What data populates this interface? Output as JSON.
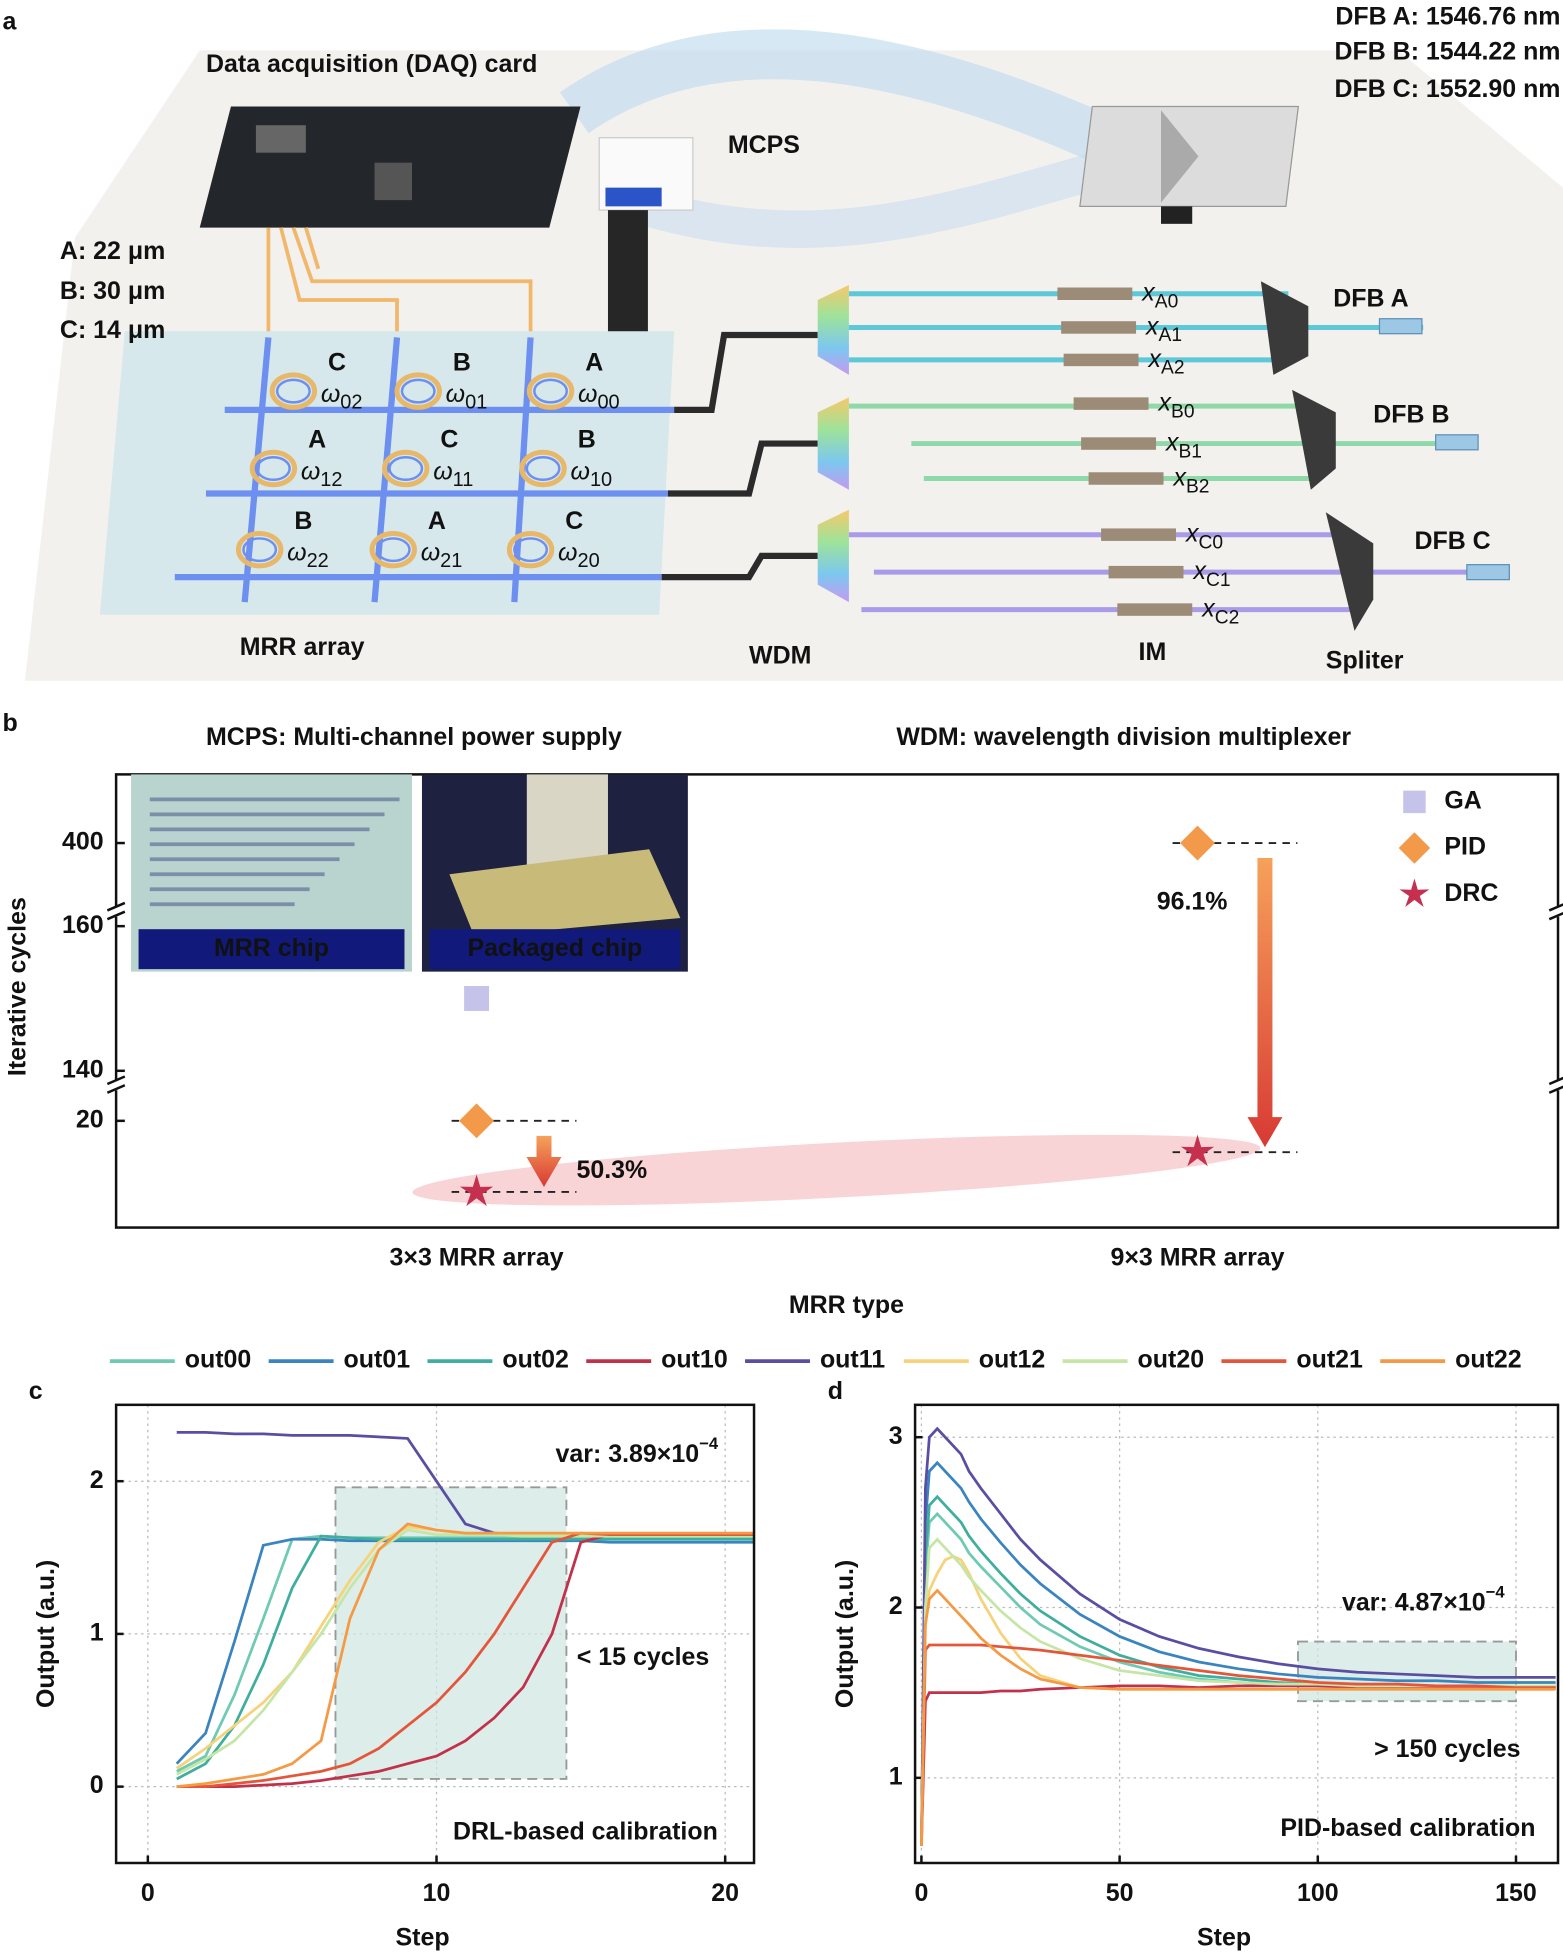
{
  "panel_a": {
    "label": "a",
    "daq": "Data acquisition (DAQ) card",
    "mcps": "MCPS",
    "dfb_wavelengths": [
      "DFB A: 1546.76 nm",
      "DFB B: 1544.22 nm",
      "DFB C: 1552.90 nm"
    ],
    "radii": [
      "A: 22 μm",
      "B: 30 μm",
      "C: 14 μm"
    ],
    "rings": [
      {
        "letter": "C",
        "symbol": "ω",
        "sub": "02"
      },
      {
        "letter": "B",
        "symbol": "ω",
        "sub": "01"
      },
      {
        "letter": "A",
        "symbol": "ω",
        "sub": "00"
      },
      {
        "letter": "A",
        "symbol": "ω",
        "sub": "12"
      },
      {
        "letter": "C",
        "symbol": "ω",
        "sub": "11"
      },
      {
        "letter": "B",
        "symbol": "ω",
        "sub": "10"
      },
      {
        "letter": "B",
        "symbol": "ω",
        "sub": "22"
      },
      {
        "letter": "A",
        "symbol": "ω",
        "sub": "21"
      },
      {
        "letter": "C",
        "symbol": "ω",
        "sub": "20"
      }
    ],
    "modulators": [
      {
        "symbol": "x",
        "sub": "A0"
      },
      {
        "symbol": "x",
        "sub": "A1"
      },
      {
        "symbol": "x",
        "sub": "A2"
      },
      {
        "symbol": "x",
        "sub": "B0"
      },
      {
        "symbol": "x",
        "sub": "B1"
      },
      {
        "symbol": "x",
        "sub": "B2"
      },
      {
        "symbol": "x",
        "sub": "C0"
      },
      {
        "symbol": "x",
        "sub": "C1"
      },
      {
        "symbol": "x",
        "sub": "C2"
      }
    ],
    "lasers": [
      "DFB A",
      "DFB B",
      "DFB C"
    ],
    "captions": [
      "MRR array",
      "WDM",
      "IM",
      "Spliter"
    ],
    "glossary": [
      "MCPS: Multi-channel power supply",
      "WDM: wavelength division multiplexer"
    ]
  },
  "chart_data": [
    {
      "type": "scatter",
      "label": "b",
      "x_label": "MRR type",
      "y_label": "Iterative cycles",
      "categories": [
        "3×3 MRR array",
        "9×3 MRR array"
      ],
      "series": [
        {
          "name": "GA",
          "color": "#c6c3ea",
          "marker": "square",
          "values": [
            150,
            null
          ]
        },
        {
          "name": "PID",
          "color": "#f39a4a",
          "marker": "diamond",
          "values": [
            20,
            400
          ]
        },
        {
          "name": "DRC",
          "color": "#c4304e",
          "marker": "star",
          "values": [
            10,
            15.6
          ]
        }
      ],
      "ylim": [
        5,
        415
      ],
      "y_segments": [
        [
          5,
          25
        ],
        [
          138,
          162
        ],
        [
          385,
          415
        ]
      ],
      "yticks": [
        20,
        140,
        160,
        400
      ],
      "annotations": [
        "50.3%",
        "96.1%"
      ],
      "insets": [
        "MRR chip",
        "Packaged chip"
      ],
      "legend": "upper right"
    },
    {
      "type": "line",
      "label": "c",
      "x_label": "Step",
      "y_label": "Output (a.u.)",
      "x": [
        1,
        2,
        3,
        4,
        5,
        6,
        7,
        8,
        9,
        10,
        11,
        12,
        13,
        14,
        15,
        16,
        17,
        18,
        19,
        20,
        21
      ],
      "xlim": [
        -1.1,
        21
      ],
      "ylim": [
        -0.5,
        2.5
      ],
      "xticks": [
        0,
        10,
        20
      ],
      "yticks": [
        0,
        1,
        2
      ],
      "grid": true,
      "series": [
        {
          "name": "out00",
          "color": "#6fcab3",
          "values": [
            0.1,
            0.2,
            0.6,
            1.1,
            1.62,
            1.64,
            1.63,
            1.63,
            1.63,
            1.63,
            1.63,
            1.63,
            1.63,
            1.63,
            1.63,
            1.63,
            1.63,
            1.63,
            1.63,
            1.63,
            1.63
          ]
        },
        {
          "name": "out01",
          "color": "#3a84bf",
          "values": [
            0.15,
            0.35,
            0.95,
            1.58,
            1.62,
            1.62,
            1.61,
            1.61,
            1.61,
            1.61,
            1.61,
            1.61,
            1.61,
            1.61,
            1.61,
            1.6,
            1.6,
            1.6,
            1.6,
            1.6,
            1.6
          ]
        },
        {
          "name": "out02",
          "color": "#3fae9e",
          "values": [
            0.05,
            0.15,
            0.4,
            0.8,
            1.3,
            1.64,
            1.63,
            1.62,
            1.62,
            1.62,
            1.62,
            1.62,
            1.62,
            1.62,
            1.62,
            1.62,
            1.62,
            1.62,
            1.62,
            1.62,
            1.62
          ]
        },
        {
          "name": "out10",
          "color": "#c2304a",
          "values": [
            0,
            0,
            0,
            0.01,
            0.02,
            0.04,
            0.07,
            0.1,
            0.15,
            0.2,
            0.3,
            0.45,
            0.65,
            1,
            1.6,
            1.65,
            1.64,
            1.64,
            1.64,
            1.64,
            1.64
          ]
        },
        {
          "name": "out11",
          "color": "#5a4ea3",
          "values": [
            2.32,
            2.32,
            2.31,
            2.31,
            2.3,
            2.3,
            2.3,
            2.29,
            2.28,
            2,
            1.72,
            1.66,
            1.65,
            1.65,
            1.64,
            1.64,
            1.64,
            1.64,
            1.64,
            1.64,
            1.64
          ]
        },
        {
          "name": "out12",
          "color": "#f6d27a",
          "values": [
            0.12,
            0.25,
            0.4,
            0.55,
            0.75,
            1.05,
            1.35,
            1.6,
            1.7,
            1.68,
            1.66,
            1.65,
            1.65,
            1.65,
            1.65,
            1.65,
            1.65,
            1.65,
            1.65,
            1.65,
            1.65
          ]
        },
        {
          "name": "out20",
          "color": "#c5e6a6",
          "values": [
            0.08,
            0.18,
            0.3,
            0.5,
            0.75,
            1,
            1.3,
            1.55,
            1.68,
            1.65,
            1.65,
            1.65,
            1.64,
            1.64,
            1.64,
            1.64,
            1.64,
            1.64,
            1.64,
            1.64,
            1.64
          ]
        },
        {
          "name": "out21",
          "color": "#e4553a",
          "values": [
            0,
            0,
            0.02,
            0.04,
            0.07,
            0.1,
            0.15,
            0.25,
            0.4,
            0.55,
            0.75,
            1,
            1.3,
            1.6,
            1.66,
            1.65,
            1.65,
            1.65,
            1.65,
            1.65,
            1.65
          ]
        },
        {
          "name": "out22",
          "color": "#f49a45",
          "values": [
            0,
            0.02,
            0.05,
            0.08,
            0.15,
            0.3,
            1.1,
            1.55,
            1.72,
            1.68,
            1.66,
            1.66,
            1.66,
            1.66,
            1.66,
            1.66,
            1.66,
            1.66,
            1.66,
            1.66,
            1.66
          ]
        }
      ],
      "highlight": {
        "x": [
          6.5,
          14.5
        ],
        "y": [
          0.05,
          1.96
        ]
      },
      "annotations": {
        "var": {
          "text": "var: 3.89×10",
          "sup": "−4"
        },
        "note": "< 15 cycles",
        "method": "DRL-based calibration"
      }
    },
    {
      "type": "line",
      "label": "d",
      "x_label": "Step",
      "y_label": "Output (a.u.)",
      "x": [
        0,
        1,
        2,
        4,
        6,
        8,
        10,
        12,
        15,
        20,
        25,
        30,
        40,
        50,
        60,
        70,
        80,
        90,
        100,
        110,
        120,
        130,
        140,
        150,
        160
      ],
      "xlim": [
        -1.6,
        160.6
      ],
      "ylim": [
        0.5,
        3.19
      ],
      "xticks": [
        0,
        50,
        100,
        150
      ],
      "yticks": [
        1,
        2,
        3
      ],
      "grid": true,
      "series": [
        {
          "color": "#6fcab3",
          "values": [
            0.6,
            2.2,
            2.5,
            2.55,
            2.5,
            2.45,
            2.4,
            2.32,
            2.24,
            2.12,
            2,
            1.9,
            1.77,
            1.68,
            1.62,
            1.58,
            1.56,
            1.55,
            1.54,
            1.54,
            1.54,
            1.53,
            1.53,
            1.53,
            1.53
          ]
        },
        {
          "color": "#3a84bf",
          "values": [
            0.6,
            2.5,
            2.8,
            2.85,
            2.8,
            2.75,
            2.7,
            2.62,
            2.52,
            2.38,
            2.25,
            2.14,
            1.96,
            1.83,
            1.74,
            1.68,
            1.64,
            1.61,
            1.59,
            1.58,
            1.57,
            1.57,
            1.56,
            1.56,
            1.56
          ]
        },
        {
          "color": "#3fae9e",
          "values": [
            0.6,
            2.3,
            2.6,
            2.65,
            2.6,
            2.55,
            2.5,
            2.42,
            2.33,
            2.2,
            2.08,
            1.98,
            1.83,
            1.72,
            1.65,
            1.6,
            1.58,
            1.56,
            1.55,
            1.55,
            1.54,
            1.54,
            1.54,
            1.54,
            1.54
          ]
        },
        {
          "color": "#c2304a",
          "values": [
            0.6,
            1.45,
            1.5,
            1.5,
            1.5,
            1.5,
            1.5,
            1.5,
            1.5,
            1.51,
            1.51,
            1.52,
            1.53,
            1.54,
            1.54,
            1.53,
            1.54,
            1.54,
            1.54,
            1.53,
            1.53,
            1.53,
            1.53,
            1.53,
            1.53
          ]
        },
        {
          "color": "#5a4ea3",
          "values": [
            0.6,
            2.7,
            3,
            3.05,
            3,
            2.95,
            2.9,
            2.8,
            2.7,
            2.55,
            2.4,
            2.28,
            2.08,
            1.93,
            1.83,
            1.76,
            1.71,
            1.67,
            1.64,
            1.62,
            1.61,
            1.6,
            1.59,
            1.59,
            1.59
          ]
        },
        {
          "color": "#f6d27a",
          "values": [
            0.6,
            1.9,
            2.1,
            2.2,
            2.28,
            2.3,
            2.28,
            2.2,
            2.05,
            1.85,
            1.7,
            1.6,
            1.53,
            1.52,
            1.52,
            1.52,
            1.52,
            1.52,
            1.52,
            1.52,
            1.52,
            1.52,
            1.52,
            1.52,
            1.52
          ]
        },
        {
          "color": "#c5e6a6",
          "values": [
            0.6,
            2,
            2.35,
            2.4,
            2.35,
            2.3,
            2.25,
            2.18,
            2.1,
            1.98,
            1.88,
            1.8,
            1.7,
            1.63,
            1.6,
            1.57,
            1.56,
            1.55,
            1.55,
            1.54,
            1.54,
            1.54,
            1.54,
            1.54,
            1.54
          ]
        },
        {
          "color": "#e4553a",
          "values": [
            0.6,
            1.75,
            1.78,
            1.78,
            1.78,
            1.78,
            1.78,
            1.78,
            1.78,
            1.77,
            1.76,
            1.75,
            1.72,
            1.69,
            1.66,
            1.63,
            1.6,
            1.58,
            1.56,
            1.55,
            1.55,
            1.54,
            1.54,
            1.53,
            1.53
          ]
        },
        {
          "color": "#f49a45",
          "values": [
            0.6,
            1.9,
            2.05,
            2.1,
            2.05,
            2,
            1.95,
            1.9,
            1.82,
            1.72,
            1.64,
            1.58,
            1.53,
            1.52,
            1.52,
            1.52,
            1.52,
            1.52,
            1.52,
            1.52,
            1.52,
            1.52,
            1.52,
            1.52,
            1.52
          ]
        }
      ],
      "highlight": {
        "x": [
          95,
          150
        ],
        "y": [
          1.45,
          1.8
        ]
      },
      "annotations": {
        "var": {
          "text": "var: 4.87×10",
          "sup": "−4"
        },
        "note": "> 150 cycles",
        "method": "PID-based calibration"
      }
    }
  ]
}
